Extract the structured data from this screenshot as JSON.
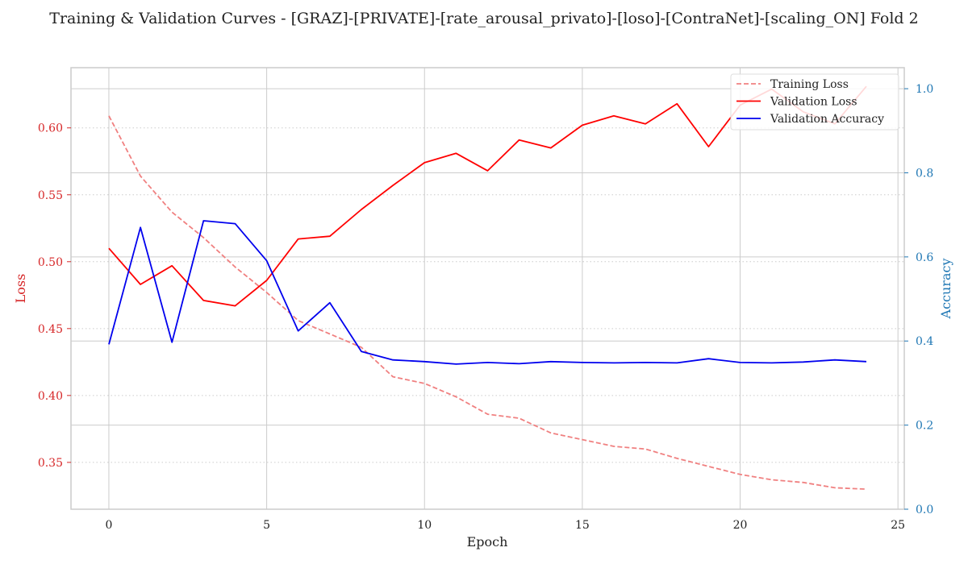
{
  "chart_data": {
    "type": "line",
    "title": "Training & Validation Curves - [GRAZ]-[PRIVATE]-[rate_arousal_privato]-[loso]-[ContraNet]-[scaling_ON] Fold 2",
    "xlabel": "Epoch",
    "ylabel_left": "Loss",
    "ylabel_right": "Accuracy",
    "xlim": [
      -1.2,
      25.2
    ],
    "ylim_left": [
      0.315,
      0.645
    ],
    "ylim_right": [
      0.0,
      1.05
    ],
    "x_ticks": [
      0,
      5,
      10,
      15,
      20,
      25
    ],
    "y_ticks_left": [
      0.35,
      0.4,
      0.45,
      0.5,
      0.55,
      0.6
    ],
    "y_ticks_right": [
      0.0,
      0.2,
      0.4,
      0.6,
      0.8,
      1.0
    ],
    "x_tick_labels": [
      "0",
      "5",
      "10",
      "15",
      "20",
      "25"
    ],
    "y_tick_labels_left": [
      "0.35",
      "0.40",
      "0.45",
      "0.50",
      "0.55",
      "0.60"
    ],
    "y_tick_labels_right": [
      "0.0",
      "0.2",
      "0.4",
      "0.6",
      "0.8",
      "1.0"
    ],
    "grid": true,
    "legend_position": "top-right",
    "x": [
      0,
      1,
      2,
      3,
      4,
      5,
      6,
      7,
      8,
      9,
      10,
      11,
      12,
      13,
      14,
      15,
      16,
      17,
      18,
      19,
      20,
      21,
      22,
      23,
      24
    ],
    "series": [
      {
        "name": "Training Loss",
        "axis": "left",
        "color": "#f08080",
        "dash": "dashed",
        "values": [
          0.609,
          0.564,
          0.537,
          0.518,
          0.496,
          0.477,
          0.456,
          0.446,
          0.436,
          0.414,
          0.409,
          0.399,
          0.386,
          0.383,
          0.372,
          0.367,
          0.362,
          0.36,
          0.353,
          0.347,
          0.341,
          0.337,
          0.335,
          0.331,
          0.33
        ]
      },
      {
        "name": "Validation Loss",
        "axis": "left",
        "color": "#ff0000",
        "dash": "solid",
        "values": [
          0.51,
          0.483,
          0.497,
          0.471,
          0.467,
          0.486,
          0.517,
          0.519,
          0.539,
          0.557,
          0.574,
          0.581,
          0.568,
          0.591,
          0.585,
          0.602,
          0.609,
          0.603,
          0.618,
          0.586,
          0.617,
          0.629,
          0.612,
          0.603,
          0.631
        ]
      },
      {
        "name": "Validation Accuracy",
        "axis": "right",
        "color": "#0000ee",
        "dash": "solid",
        "values": [
          0.392,
          0.67,
          0.397,
          0.686,
          0.679,
          0.591,
          0.424,
          0.491,
          0.375,
          0.355,
          0.351,
          0.345,
          0.349,
          0.346,
          0.351,
          0.349,
          0.348,
          0.349,
          0.348,
          0.358,
          0.349,
          0.348,
          0.35,
          0.355,
          0.351
        ]
      }
    ]
  },
  "colors": {
    "left_axis": "#d62728",
    "right_axis": "#1f77b4",
    "grid": "#cccccc",
    "frame": "#cccccc"
  }
}
